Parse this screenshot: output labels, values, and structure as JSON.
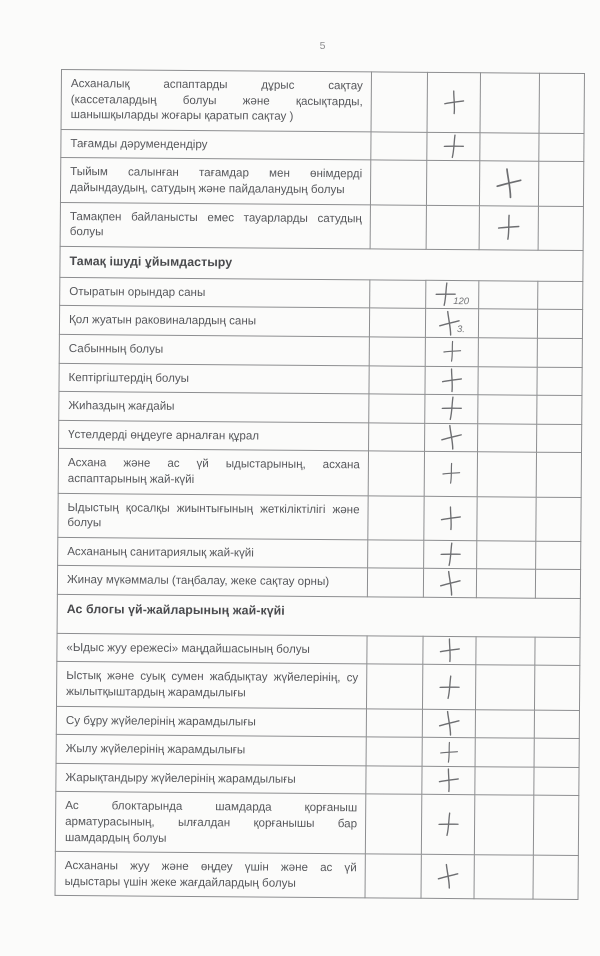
{
  "page": {
    "number": "5"
  },
  "colors": {
    "paper": "#fbfbfa",
    "ink": "#57585c",
    "section_ink": "#494a4d",
    "border": "#8d8e90",
    "pencil": "#6d6e71"
  },
  "checklist_table": {
    "column_count": 5,
    "check_symbol": "+",
    "rows": [
      {
        "kind": "item",
        "label": "Асханалық аспаптарды дұрыс сақтау (кассеталардың болуы және қасықтарды, шанышқыларды жоғары қаратып сақтау )",
        "lines": [
          "Асханалық аспаптарды дұрыс сақтау",
          "(кассеталардың болуы және қасықтарды,",
          "шанышқыларды жоғары қаратып сақтау )"
        ],
        "check_column": 2,
        "note": ""
      },
      {
        "kind": "item",
        "label": "Тағамды дәрумендендіру",
        "check_column": 2,
        "note": ""
      },
      {
        "kind": "item",
        "label": "Тыйым салынған тағамдар мен өнімдерді дайындаудың, сатудың және пайдаланудың болуы",
        "lines": [
          "Тыйым салынған тағамдар мен өнімдерді",
          "дайындаудың, сатудың және пайдаланудың болуы"
        ],
        "check_column": 3,
        "note": ""
      },
      {
        "kind": "item",
        "label": "Тамақпен байланысты емес тауарларды сатудың болуы",
        "lines": [
          "Тамақпен байланысты емес тауарларды сатудың",
          "болуы"
        ],
        "check_column": 3,
        "note": ""
      },
      {
        "kind": "section",
        "label": "Тамақ ішуді ұйымдастыру"
      },
      {
        "kind": "item",
        "label": "Отыратын орындар саны",
        "check_column": 2,
        "note": "120"
      },
      {
        "kind": "item",
        "label": "Қол жуатын раковиналардың саны",
        "check_column": 2,
        "note": "3."
      },
      {
        "kind": "item",
        "label": "Сабынның болуы",
        "check_column": 2,
        "note": ""
      },
      {
        "kind": "item",
        "label": "Кептіргіштердің болуы",
        "check_column": 2,
        "note": ""
      },
      {
        "kind": "item",
        "label": "Жиһаздың жағдайы",
        "check_column": 2,
        "note": ""
      },
      {
        "kind": "item",
        "label": "Үстелдерді өңдеуге арналған құрал",
        "check_column": 2,
        "note": ""
      },
      {
        "kind": "item",
        "label": "Асхана және ас үй ыдыстарының, асхана аспаптарының жай-күйі",
        "lines": [
          "Асхана және ас үй ыдыстарының, асхана",
          "аспаптарының жай-күйі"
        ],
        "check_column": 2,
        "note": ""
      },
      {
        "kind": "item",
        "label": "Ыдыстың қосалқы жиынтығының жеткіліктілігі және болуы",
        "lines": [
          "Ыдыстың қосалқы жиынтығының жеткіліктілігі және",
          "болуы"
        ],
        "check_column": 2,
        "note": ""
      },
      {
        "kind": "item",
        "label": "Асхананың санитариялық жай-күйі",
        "check_column": 2,
        "note": ""
      },
      {
        "kind": "item",
        "label": "Жинау мүкәммалы (таңбалау, жеке сақтау орны)",
        "check_column": 2,
        "note": ""
      },
      {
        "kind": "section",
        "label": "Ас блогы үй-жайларының жай-күйі",
        "extra_space": true
      },
      {
        "kind": "item",
        "label": "«Ыдыс жуу ережесі» маңдайшасының болуы",
        "check_column": 2,
        "note": ""
      },
      {
        "kind": "item",
        "label": "Ыстық және суық сумен жабдықтау жүйелерінің, су жылытқыштардың жарамдылығы",
        "lines": [
          "Ыстық және суық сумен жабдықтау жүйелерінің, су",
          "жылытқыштардың жарамдылығы"
        ],
        "check_column": 2,
        "note": ""
      },
      {
        "kind": "item",
        "label": "Су бұру жүйелерінің жарамдылығы",
        "check_column": 2,
        "note": ""
      },
      {
        "kind": "item",
        "label": "Жылу жүйелерінің жарамдылығы",
        "check_column": 2,
        "note": ""
      },
      {
        "kind": "item",
        "label": "Жарықтандыру жүйелерінің жарамдылығы",
        "check_column": 2,
        "note": ""
      },
      {
        "kind": "item",
        "label": "Ас блоктарында шамдарда қорғаныш арматурасының, ылғалдан қорғанышы бар шамдардың болуы",
        "lines": [
          "Ас блоктарында шамдарда қорғаныш",
          "арматурасының, ылғалдан қорғанышы бар",
          "шамдардың болуы"
        ],
        "check_column": 2,
        "note": ""
      },
      {
        "kind": "item",
        "label": "Асхананы жуу және өңдеу үшін және ас үй ыдыстары үшін жеке жағдайлардың болуы",
        "lines": [
          "Асхананы жуу және өңдеу үшін және ас үй",
          "ыдыстары үшін жеке жағдайлардың болуы"
        ],
        "check_column": 2,
        "note": ""
      }
    ]
  }
}
